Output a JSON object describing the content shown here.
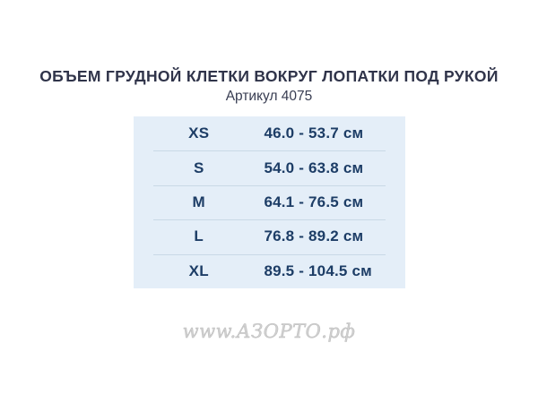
{
  "chart_data": {
    "type": "table",
    "title": "ОБЪЕМ ГРУДНОЙ КЛЕТКИ ВОКРУГ ЛОПАТКИ ПОД РУКОЙ",
    "subtitle": "Артикул 4075",
    "columns": [
      "size",
      "chest_range_cm"
    ],
    "rows": [
      {
        "size": "XS",
        "range": "46.0 - 53.7 см"
      },
      {
        "size": "S",
        "range": "54.0 - 63.8 см"
      },
      {
        "size": "M",
        "range": "64.1 - 76.5 см"
      },
      {
        "size": "L",
        "range": "76.8 - 89.2 см"
      },
      {
        "size": "XL",
        "range": "89.5 - 104.5 см"
      }
    ]
  },
  "watermark": {
    "text": "www.АЗОРТО.рф"
  },
  "colors": {
    "title_text": "#30344a",
    "table_text": "#1d3d66",
    "table_background": "#e4eef8",
    "row_divider": "#c9d9e6",
    "watermark_text": "#d0d0d0",
    "page_background": "#ffffff"
  }
}
